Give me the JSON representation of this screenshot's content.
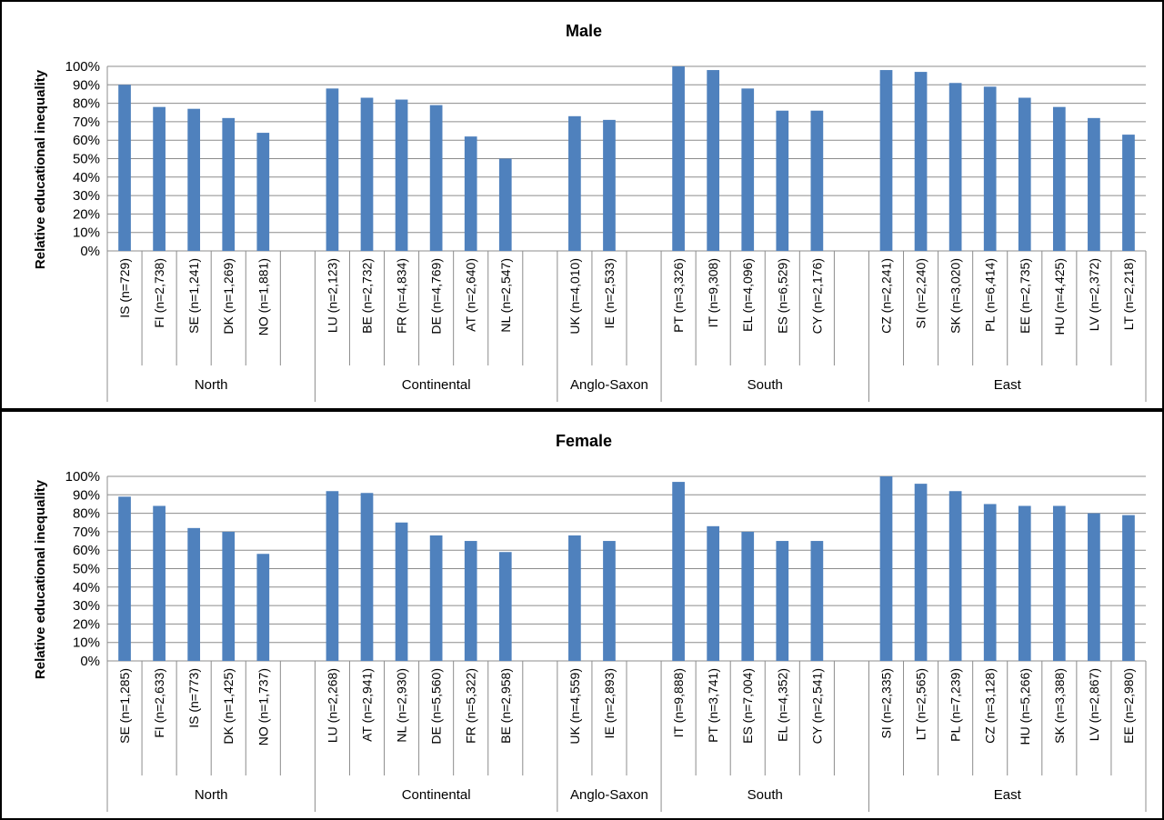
{
  "chart_data": [
    {
      "type": "bar",
      "title": "Male",
      "ylabel": "Relative educational inequality",
      "xlabel": "",
      "ylim": [
        0,
        100
      ],
      "y_ticks": [
        "0%",
        "10%",
        "20%",
        "30%",
        "40%",
        "50%",
        "60%",
        "70%",
        "80%",
        "90%",
        "100%"
      ],
      "grid": true,
      "bar_color": "#4f81bd",
      "groups": [
        {
          "name": "North",
          "categories": [
            "IS (n=729)",
            "FI (n=2,738)",
            "SE (n=1,241)",
            "DK (n=1,269)",
            "NO (n=1,881)"
          ],
          "values": [
            90,
            78,
            77,
            72,
            64
          ]
        },
        {
          "name": "Continental",
          "categories": [
            "LU (n=2,123)",
            "BE (n=2,732)",
            "FR (n=4,834)",
            "DE (n=4,769)",
            "AT (n=2,640)",
            "NL (n=2,547)"
          ],
          "values": [
            88,
            83,
            82,
            79,
            62,
            50
          ]
        },
        {
          "name": "Anglo-Saxon",
          "categories": [
            "UK (n=4,010)",
            "IE (n=2,533)"
          ],
          "values": [
            73,
            71
          ]
        },
        {
          "name": "South",
          "categories": [
            "PT (n=3,326)",
            "IT (n=9,308)",
            "EL (n=4,096)",
            "ES (n=6,529)",
            "CY (n=2,176)"
          ],
          "values": [
            100,
            98,
            88,
            76,
            76
          ]
        },
        {
          "name": "East",
          "categories": [
            "CZ (n=2,241)",
            "SI (n=2,240)",
            "SK (n=3,020)",
            "PL (n=6,414)",
            "EE (n=2,735)",
            "HU (n=4,425)",
            "LV (n=2,372)",
            "LT (n=2,218)"
          ],
          "values": [
            98,
            97,
            91,
            89,
            83,
            78,
            72,
            63
          ]
        }
      ]
    },
    {
      "type": "bar",
      "title": "Female",
      "ylabel": "Relative educational inequality",
      "xlabel": "",
      "ylim": [
        0,
        100
      ],
      "y_ticks": [
        "0%",
        "10%",
        "20%",
        "30%",
        "40%",
        "50%",
        "60%",
        "70%",
        "80%",
        "90%",
        "100%"
      ],
      "grid": true,
      "bar_color": "#4f81bd",
      "groups": [
        {
          "name": "North",
          "categories": [
            "SE (n=1,285)",
            "FI (n=2,633)",
            "IS (n=773)",
            "DK (n=1,425)",
            "NO (n=1,737)"
          ],
          "values": [
            89,
            84,
            72,
            70,
            58
          ]
        },
        {
          "name": "Continental",
          "categories": [
            "LU (n=2,268)",
            "AT (n=2,941)",
            "NL (n=2,930)",
            "DE (n=5,560)",
            "FR (n=5,322)",
            "BE (n=2,958)"
          ],
          "values": [
            92,
            91,
            75,
            68,
            65,
            59
          ]
        },
        {
          "name": "Anglo-Saxon",
          "categories": [
            "UK (n=4,559)",
            "IE (n=2,893)"
          ],
          "values": [
            68,
            65
          ]
        },
        {
          "name": "South",
          "categories": [
            "IT (n=9,888)",
            "PT (n=3,741)",
            "ES (n=7,004)",
            "EL (n=4,352)",
            "CY (n=2,541)"
          ],
          "values": [
            97,
            73,
            70,
            65,
            65
          ]
        },
        {
          "name": "East",
          "categories": [
            "SI (n=2,335)",
            "LT (n=2,565)",
            "PL (n=7,239)",
            "CZ (n=3,128)",
            "HU (n=5,266)",
            "SK (n=3,388)",
            "LV (n=2,867)",
            "EE (n=2,980)"
          ],
          "values": [
            100,
            96,
            92,
            85,
            84,
            84,
            80,
            79
          ]
        }
      ]
    }
  ]
}
